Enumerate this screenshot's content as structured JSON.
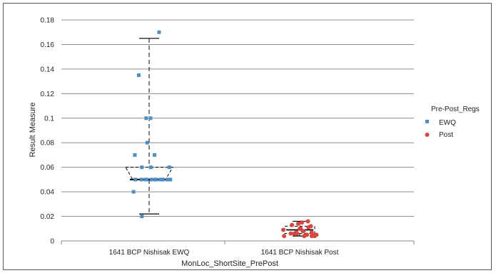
{
  "chart_data": {
    "type": "scatter",
    "xlabel": "MonLoc_ShortSite_PrePost",
    "ylabel": "Result Measure",
    "ylim": [
      0,
      0.18
    ],
    "yticks": [
      0,
      0.02,
      0.04,
      0.06,
      0.08,
      0.1,
      0.12,
      0.14,
      0.16,
      0.18
    ],
    "ytick_labels": [
      "0",
      "0.02",
      "0.04",
      "0.06",
      "0.08",
      "0.1",
      "0.12",
      "0.14",
      "0.16",
      "0.18"
    ],
    "categories": [
      "1641 BCP Nishisak EWQ",
      "1641 BCP Nishisak Post"
    ],
    "grid": "horizontal",
    "legend": {
      "title": "Pre-Post_Regs",
      "position": "right",
      "entries": [
        {
          "name": "EWQ",
          "color": "#4a90c8",
          "marker": "square"
        },
        {
          "name": "Post",
          "color": "#d9453f",
          "marker": "circle"
        }
      ]
    },
    "series": [
      {
        "name": "EWQ",
        "color": "#4a90c8",
        "category": 0,
        "values": [
          0.17,
          0.135,
          0.1,
          0.1,
          0.08,
          0.07,
          0.07,
          0.06,
          0.06,
          0.06,
          0.05,
          0.05,
          0.05,
          0.05,
          0.05,
          0.05,
          0.05,
          0.05,
          0.05,
          0.05,
          0.05,
          0.05,
          0.05,
          0.04,
          0.02
        ],
        "box": {
          "whisker_low": 0.022,
          "q1": 0.05,
          "median": 0.05,
          "q3": 0.06,
          "whisker_high": 0.165
        }
      },
      {
        "name": "Post",
        "color": "#d9453f",
        "category": 1,
        "values": [
          0.016,
          0.015,
          0.014,
          0.013,
          0.012,
          0.011,
          0.01,
          0.01,
          0.01,
          0.009,
          0.008,
          0.008,
          0.007,
          0.007,
          0.006,
          0.006,
          0.006,
          0.005,
          0.005,
          0.005,
          0.004,
          0.004,
          0.004,
          0.004
        ],
        "box": {
          "whisker_low": 0.004,
          "q1": 0.006,
          "median": 0.009,
          "q3": 0.012,
          "whisker_high": 0.016
        }
      }
    ]
  }
}
